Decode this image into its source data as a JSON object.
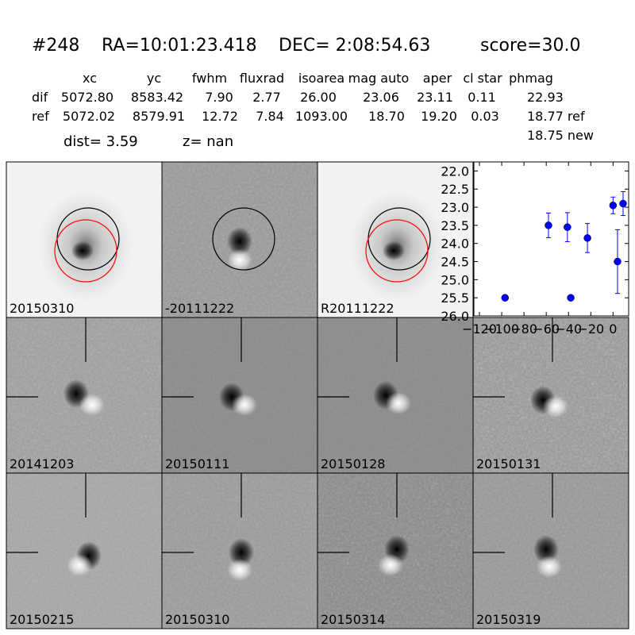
{
  "header": {
    "id": "#248",
    "ra": "RA=10:01:23.418",
    "dec": "DEC= 2:08:54.63",
    "score": "score=30.0"
  },
  "table": {
    "header": [
      "xc",
      "yc",
      "fwhm",
      "fluxrad",
      "isoarea",
      "mag auto",
      "aper",
      "cl star",
      "phmag"
    ],
    "rows": [
      [
        "dif",
        "5072.80",
        "8583.42",
        "7.90",
        "2.77",
        "26.00",
        "23.06",
        "23.11",
        "0.11",
        "22.93"
      ],
      [
        "ref",
        "5072.02",
        "8579.91",
        "12.72",
        "7.84",
        "1093.00",
        "18.70",
        "19.20",
        "0.03",
        "18.77 ref"
      ]
    ],
    "extra": "18.75 new"
  },
  "dist": "dist=  3.59",
  "z": "z=   nan",
  "panels": [
    {
      "label": "20150310",
      "color": "#000000"
    },
    {
      "label": "-20111222",
      "color": "#000000"
    },
    {
      "label": "R20111222",
      "color": "#000000"
    },
    {
      "label": "20141203",
      "color": "#000000"
    },
    {
      "label": "20150111",
      "color": "#000000"
    },
    {
      "label": "20150128",
      "color": "#000000"
    },
    {
      "label": "20150131",
      "color": "#000000"
    },
    {
      "label": "20150215",
      "color": "#000000"
    },
    {
      "label": "20150310",
      "color": "#ff0000"
    },
    {
      "label": "20150314",
      "color": "#000000"
    },
    {
      "label": "20150319",
      "color": "#000000"
    }
  ],
  "chart_data": {
    "type": "errorbar",
    "color": "#0000ff",
    "x": [
      -97,
      -58,
      -41,
      -38,
      -23,
      0,
      4,
      9
    ],
    "values": [
      25.5,
      23.5,
      23.55,
      25.5,
      23.85,
      22.95,
      24.5,
      22.9
    ],
    "errors": [
      0.05,
      0.34,
      0.4,
      0.05,
      0.4,
      0.23,
      0.88,
      0.33
    ],
    "xlim": [
      -125,
      14
    ],
    "ylim": [
      26.0,
      21.75
    ],
    "xticks": [
      {
        "value": -120,
        "label": "−120"
      },
      {
        "value": -100,
        "label": "−100"
      },
      {
        "value": -80,
        "label": "−80"
      },
      {
        "value": -60,
        "label": "−60"
      },
      {
        "value": -40,
        "label": "−40"
      },
      {
        "value": -20,
        "label": "−20"
      },
      0
    ],
    "yticks": [
      {
        "value": 22,
        "label": "22.0"
      },
      22.5,
      {
        "value": 23,
        "label": "23.0"
      },
      23.5,
      {
        "value": 24,
        "label": "24.0"
      },
      24.5,
      {
        "value": 25,
        "label": "25.0"
      },
      25.5,
      {
        "value": 26,
        "label": "26.0"
      }
    ]
  }
}
